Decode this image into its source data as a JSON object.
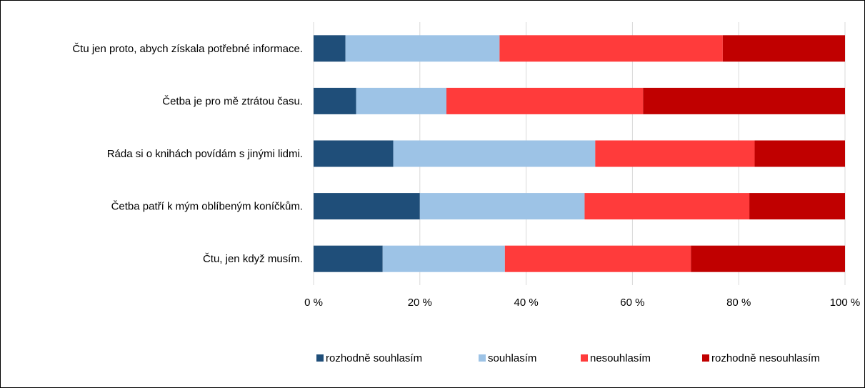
{
  "chart_data": {
    "type": "bar",
    "orientation": "horizontal",
    "stacked": "percent",
    "categories": [
      "Čtu jen proto, abych získala potřebné informace.",
      "Četba je pro mě ztrátou času.",
      "Ráda si o knihách povídám s jinými lidmi.",
      "Četba patří k mým oblíbeným koníčkům.",
      "Čtu, jen když musím."
    ],
    "series": [
      {
        "name": "rozhodně souhlasím",
        "color": "#1f4e79",
        "values": [
          6,
          8,
          15,
          20,
          13
        ]
      },
      {
        "name": "souhlasím",
        "color": "#9dc3e6",
        "values": [
          29,
          17,
          38,
          31,
          23
        ]
      },
      {
        "name": "nesouhlasím",
        "color": "#ff3b3b",
        "values": [
          42,
          37,
          30,
          31,
          35
        ]
      },
      {
        "name": "rozhodně nesouhlasím",
        "color": "#c00000",
        "values": [
          23,
          38,
          17,
          18,
          29
        ]
      }
    ],
    "xlim": [
      0,
      100
    ],
    "x_ticks": [
      "0 %",
      "20 %",
      "40 %",
      "60 %",
      "80 %",
      "100 %"
    ],
    "grid": true,
    "legend_position": "bottom"
  }
}
